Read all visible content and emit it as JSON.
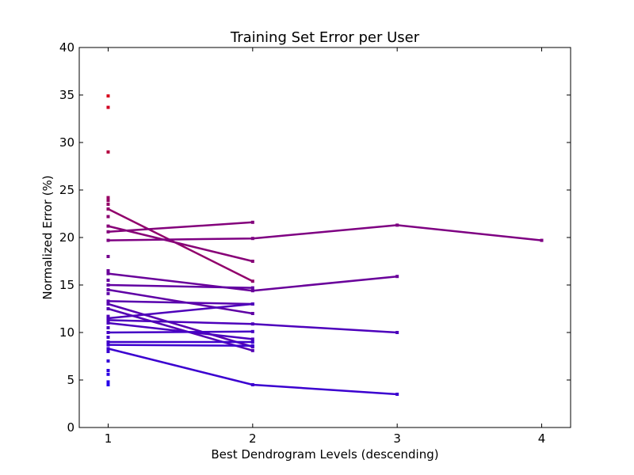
{
  "chart_data": {
    "type": "line",
    "title": "Training Set Error per User",
    "xlabel": "Best Dendrogram Levels (descending)",
    "ylabel": "Normalized Error (%)",
    "xlim": [
      0.8,
      4.2
    ],
    "ylim": [
      0,
      40
    ],
    "xticks": [
      1,
      2,
      3,
      4
    ],
    "yticks": [
      0,
      5,
      10,
      15,
      20,
      25,
      30,
      35,
      40
    ],
    "grid": false,
    "legend": false,
    "color_scale": {
      "low": "#2200ee",
      "high": "#dd0011",
      "value_range": [
        4,
        36
      ]
    },
    "series": [
      {
        "x": [
          1
        ],
        "y": [
          34.9
        ]
      },
      {
        "x": [
          1
        ],
        "y": [
          33.7
        ]
      },
      {
        "x": [
          1
        ],
        "y": [
          29.0
        ]
      },
      {
        "x": [
          1
        ],
        "y": [
          24.2
        ]
      },
      {
        "x": [
          1
        ],
        "y": [
          23.9
        ]
      },
      {
        "x": [
          1
        ],
        "y": [
          23.5
        ]
      },
      {
        "x": [
          1
        ],
        "y": [
          22.2
        ]
      },
      {
        "x": [
          1
        ],
        "y": [
          18.0
        ]
      },
      {
        "x": [
          1
        ],
        "y": [
          16.5
        ]
      },
      {
        "x": [
          1
        ],
        "y": [
          15.5
        ]
      },
      {
        "x": [
          1
        ],
        "y": [
          14.1
        ]
      },
      {
        "x": [
          1
        ],
        "y": [
          11.7
        ]
      },
      {
        "x": [
          1
        ],
        "y": [
          10.5
        ]
      },
      {
        "x": [
          1
        ],
        "y": [
          9.5
        ]
      },
      {
        "x": [
          1
        ],
        "y": [
          8.0
        ]
      },
      {
        "x": [
          1
        ],
        "y": [
          7.0
        ]
      },
      {
        "x": [
          1
        ],
        "y": [
          6.0
        ]
      },
      {
        "x": [
          1
        ],
        "y": [
          5.6
        ]
      },
      {
        "x": [
          1
        ],
        "y": [
          4.8
        ]
      },
      {
        "x": [
          1
        ],
        "y": [
          4.5
        ]
      },
      {
        "x": [
          1,
          2
        ],
        "y": [
          23.0,
          15.4
        ]
      },
      {
        "x": [
          1,
          2
        ],
        "y": [
          21.2,
          17.5
        ]
      },
      {
        "x": [
          1,
          2
        ],
        "y": [
          20.6,
          21.6
        ]
      },
      {
        "x": [
          1,
          2,
          3,
          4
        ],
        "y": [
          19.7,
          19.9,
          21.3,
          19.7
        ]
      },
      {
        "x": [
          1,
          2,
          3
        ],
        "y": [
          16.2,
          14.4,
          15.9
        ]
      },
      {
        "x": [
          1,
          2
        ],
        "y": [
          15.0,
          14.7
        ]
      },
      {
        "x": [
          1,
          2
        ],
        "y": [
          14.5,
          12.0
        ]
      },
      {
        "x": [
          1,
          2
        ],
        "y": [
          13.3,
          13.0
        ]
      },
      {
        "x": [
          1,
          2
        ],
        "y": [
          13.0,
          8.5
        ]
      },
      {
        "x": [
          1,
          2
        ],
        "y": [
          12.5,
          8.1
        ]
      },
      {
        "x": [
          1,
          2
        ],
        "y": [
          11.5,
          13.0
        ]
      },
      {
        "x": [
          1,
          2,
          3
        ],
        "y": [
          11.3,
          10.9,
          10.0
        ]
      },
      {
        "x": [
          1,
          2
        ],
        "y": [
          11.0,
          9.3
        ]
      },
      {
        "x": [
          1,
          2
        ],
        "y": [
          10.0,
          10.1
        ]
      },
      {
        "x": [
          1,
          2
        ],
        "y": [
          9.0,
          9.0
        ]
      },
      {
        "x": [
          1,
          2
        ],
        "y": [
          8.7,
          8.6
        ]
      },
      {
        "x": [
          1,
          2,
          3
        ],
        "y": [
          8.3,
          4.5,
          3.5
        ]
      }
    ]
  }
}
